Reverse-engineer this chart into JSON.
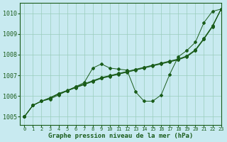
{
  "title": "Graphe pression niveau de la mer (hPa)",
  "background_color": "#c8eaf0",
  "grid_color": "#99ccbb",
  "line_color": "#1a5c1a",
  "xlim": [
    -0.5,
    23
  ],
  "ylim": [
    1004.6,
    1010.5
  ],
  "yticks": [
    1005,
    1006,
    1007,
    1008,
    1009,
    1010
  ],
  "xticks": [
    0,
    1,
    2,
    3,
    4,
    5,
    6,
    7,
    8,
    9,
    10,
    11,
    12,
    13,
    14,
    15,
    16,
    17,
    18,
    19,
    20,
    21,
    22,
    23
  ],
  "series_wavy": [
    1005.0,
    1005.55,
    1005.75,
    1005.85,
    1006.05,
    1006.25,
    1006.45,
    1006.65,
    1007.35,
    1007.55,
    1007.35,
    1007.3,
    1007.25,
    1006.2,
    1005.75,
    1005.75,
    1006.05,
    1007.05,
    1007.9,
    1008.2,
    1008.6,
    1009.55,
    1010.1,
    1010.2
  ],
  "series_linear": [
    [
      1005.0,
      1005.55,
      1005.75,
      1005.9,
      1006.1,
      1006.25,
      1006.4,
      1006.55,
      1006.7,
      1006.85,
      1006.95,
      1007.05,
      1007.15,
      1007.25,
      1007.35,
      1007.45,
      1007.55,
      1007.65,
      1007.75,
      1007.9,
      1008.2,
      1008.75,
      1009.35,
      1010.2
    ],
    [
      1005.0,
      1005.55,
      1005.75,
      1005.9,
      1006.1,
      1006.25,
      1006.42,
      1006.57,
      1006.72,
      1006.87,
      1006.97,
      1007.07,
      1007.17,
      1007.27,
      1007.37,
      1007.47,
      1007.57,
      1007.67,
      1007.77,
      1007.92,
      1008.22,
      1008.77,
      1009.37,
      1010.2
    ],
    [
      1005.0,
      1005.55,
      1005.75,
      1005.92,
      1006.12,
      1006.27,
      1006.44,
      1006.59,
      1006.74,
      1006.89,
      1006.99,
      1007.09,
      1007.19,
      1007.29,
      1007.39,
      1007.49,
      1007.59,
      1007.69,
      1007.79,
      1007.94,
      1008.24,
      1008.79,
      1009.39,
      1010.2
    ]
  ]
}
